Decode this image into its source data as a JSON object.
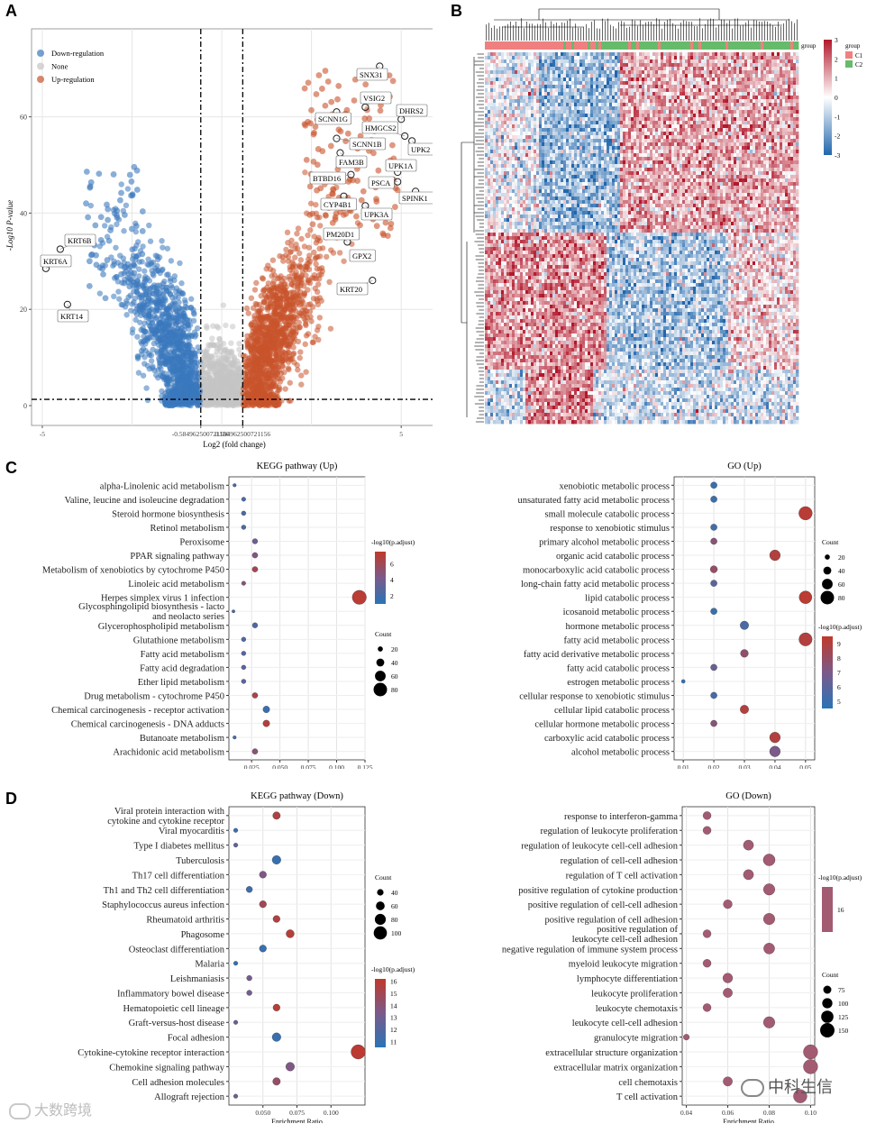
{
  "panels": {
    "a": "A",
    "b": "B",
    "c": "C",
    "d": "D"
  },
  "volcano": {
    "legend": [
      "Down-regulation",
      "None",
      "Up-regulation"
    ],
    "colors": {
      "down": "#3a78bd",
      "none": "#c4c4c4",
      "up": "#c9532c"
    },
    "xlabel": "Log2 (fold change)",
    "ylabel": "-Log10 P-value",
    "xticks": [
      "-5",
      "-0.584962500721156",
      "0.584962500721156",
      "5"
    ],
    "yticks": [
      "0",
      "20",
      "40",
      "60"
    ],
    "genes_up": [
      {
        "name": "SNX31",
        "x": 4.4,
        "y": 70.5
      },
      {
        "name": "VSIG2",
        "x": 4.0,
        "y": 62.0
      },
      {
        "name": "DHRS2",
        "x": 5.0,
        "y": 59.5
      },
      {
        "name": "SCNN1G",
        "x": 3.2,
        "y": 61.0
      },
      {
        "name": "HMGCS2",
        "x": 5.1,
        "y": 56.0
      },
      {
        "name": "SCNN1B",
        "x": 3.2,
        "y": 55.5
      },
      {
        "name": "UPK2",
        "x": 5.3,
        "y": 55.0
      },
      {
        "name": "FAM3B",
        "x": 3.3,
        "y": 52.5
      },
      {
        "name": "UPK1A",
        "x": 4.9,
        "y": 48.5
      },
      {
        "name": "BTBD16",
        "x": 3.6,
        "y": 48.0
      },
      {
        "name": "PSCA",
        "x": 4.9,
        "y": 46.5
      },
      {
        "name": "SPINK1",
        "x": 5.4,
        "y": 44.5
      },
      {
        "name": "CYP4B1",
        "x": 3.4,
        "y": 43.5
      },
      {
        "name": "UPK3A",
        "x": 4.0,
        "y": 41.5
      },
      {
        "name": "PM20D1",
        "x": 3.5,
        "y": 34.0
      },
      {
        "name": "GPX2",
        "x": 3.7,
        "y": 31.5
      },
      {
        "name": "KRT20",
        "x": 4.2,
        "y": 26.0
      }
    ],
    "genes_down": [
      {
        "name": "KRT6B",
        "x": -4.5,
        "y": 32.5
      },
      {
        "name": "KRT6A",
        "x": -4.9,
        "y": 28.5
      },
      {
        "name": "KRT14",
        "x": -4.3,
        "y": 21.0
      }
    ]
  },
  "heatmap": {
    "legend_title": "group",
    "scale_ticks": [
      "3",
      "2",
      "1",
      "0",
      "-1",
      "-2",
      "-3"
    ],
    "groups": [
      "C1",
      "C2"
    ],
    "group_colors": [
      "#f08080",
      "#66bb6a"
    ],
    "colors": {
      "high": "#b2182b",
      "mid": "#ffffff",
      "low": "#2166ac"
    }
  },
  "chart_data": [
    {
      "type": "scatter",
      "title": "KEGG pathway (Up)",
      "xlabel": "Enrichment Ratio",
      "xlim": [
        0.005,
        0.125
      ],
      "xticks": [
        "0.025",
        "0.050",
        "0.075",
        "0.100",
        "0.125"
      ],
      "legend_color_title": "-log10(p.adjust)",
      "color_ticks": [
        "6",
        "4",
        "2"
      ],
      "color_range": [
        1,
        7.5
      ],
      "legend_size_title": "Count",
      "size_ticks": [
        "20",
        "40",
        "60",
        "80"
      ],
      "terms": [
        "alpha-Linolenic acid metabolism",
        "Valine, leucine and isoleucine degradation",
        "Steroid hormone biosynthesis",
        "Retinol metabolism",
        "Peroxisome",
        "PPAR signaling pathway",
        "Metabolism of xenobiotics by cytochrome P450",
        "Linoleic acid metabolism",
        "Herpes simplex virus 1 infection",
        "Glycosphingolipid biosynthesis - lacto\nand neolacto series",
        "Glycerophospholipid metabolism",
        "Glutathione metabolism",
        "Fatty acid metabolism",
        "Fatty acid degradation",
        "Ether lipid metabolism",
        "Drug metabolism - cytochrome P450",
        "Chemical carcinogenesis - receptor activation",
        "Chemical carcinogenesis - DNA adducts",
        "Butanoate metabolism",
        "Arachidonic acid metabolism"
      ],
      "ratios": [
        0.01,
        0.018,
        0.018,
        0.018,
        0.028,
        0.028,
        0.028,
        0.018,
        0.12,
        0.009,
        0.028,
        0.018,
        0.018,
        0.018,
        0.018,
        0.028,
        0.038,
        0.038,
        0.01,
        0.028
      ],
      "logp": [
        2.2,
        2.2,
        2.4,
        2.6,
        3.8,
        4.6,
        6.2,
        4.8,
        7.2,
        2.0,
        2.5,
        2.5,
        2.8,
        2.8,
        3.0,
        6.5,
        1.5,
        7.0,
        2.2,
        4.9
      ],
      "counts": [
        8,
        14,
        16,
        16,
        22,
        24,
        24,
        14,
        85,
        6,
        22,
        16,
        16,
        16,
        16,
        24,
        32,
        32,
        8,
        24
      ]
    },
    {
      "type": "scatter",
      "title": "GO (Up)",
      "xlabel": "Enrichment Ratio",
      "xlim": [
        0.007,
        0.053
      ],
      "xticks": [
        "0.01",
        "0.02",
        "0.03",
        "0.04",
        "0.05"
      ],
      "legend_size_title": "Count",
      "size_ticks": [
        "20",
        "40",
        "60",
        "80"
      ],
      "legend_color_title": "-log10(p.adjust)",
      "color_ticks": [
        "9",
        "8",
        "7",
        "6",
        "5"
      ],
      "color_range": [
        4.5,
        9.5
      ],
      "terms": [
        "xenobiotic metabolic process",
        "unsaturated fatty acid metabolic process",
        "small molecule catabolic process",
        "response to xenobiotic stimulus",
        "primary alcohol metabolic process",
        "organic acid catabolic process",
        "monocarboxylic acid catabolic process",
        "long-chain fatty acid metabolic process",
        "lipid catabolic process",
        "icosanoid metabolic process",
        "hormone metabolic process",
        "fatty acid metabolic process",
        "fatty acid derivative metabolic process",
        "fatty acid catabolic process",
        "estrogen metabolic process",
        "cellular response to xenobiotic stimulus",
        "cellular lipid catabolic process",
        "cellular hormone metabolic process",
        "carboxylic acid catabolic process",
        "alcohol metabolic process"
      ],
      "ratios": [
        0.02,
        0.02,
        0.05,
        0.02,
        0.02,
        0.04,
        0.02,
        0.02,
        0.05,
        0.02,
        0.03,
        0.05,
        0.03,
        0.02,
        0.01,
        0.02,
        0.03,
        0.02,
        0.04,
        0.04
      ],
      "logp": [
        5.0,
        5.0,
        9.2,
        5.2,
        7.5,
        9.0,
        8.0,
        6.0,
        9.3,
        5.0,
        5.5,
        9.0,
        7.8,
        6.5,
        4.8,
        5.3,
        9.0,
        7.5,
        9.0,
        7.0
      ],
      "counts": [
        30,
        30,
        80,
        30,
        30,
        60,
        35,
        30,
        75,
        30,
        45,
        78,
        40,
        30,
        10,
        30,
        45,
        30,
        60,
        60
      ]
    },
    {
      "type": "scatter",
      "title": "KEGG pathway (Down)",
      "xlabel": "Enrichment Ratio",
      "xlim": [
        0.025,
        0.125
      ],
      "xticks": [
        "0.050",
        "0.075",
        "0.100"
      ],
      "legend_size_title": "Count",
      "size_ticks": [
        "40",
        "60",
        "80",
        "100"
      ],
      "legend_color_title": "-log10(p.adjust)",
      "color_ticks": [
        "16",
        "15",
        "14",
        "13",
        "12",
        "11"
      ],
      "color_range": [
        10.5,
        16.2
      ],
      "terms": [
        "Viral protein interaction with\ncytokine and cytokine receptor",
        "Viral myocarditis",
        "Type I diabetes mellitus",
        "Tuberculosis",
        "Th17 cell differentiation",
        "Th1 and Th2 cell differentiation",
        "Staphylococcus aureus infection",
        "Rheumatoid arthritis",
        "Phagosome",
        "Osteoclast differentiation",
        "Malaria",
        "Leishmaniasis",
        "Inflammatory bowel disease",
        "Hematopoietic cell lineage",
        "Graft-versus-host disease",
        "Focal adhesion",
        "Cytokine-cytokine receptor interaction",
        "Chemokine signaling pathway",
        "Cell adhesion molecules",
        "Allograft rejection"
      ],
      "ratios": [
        0.06,
        0.03,
        0.03,
        0.06,
        0.05,
        0.04,
        0.05,
        0.06,
        0.07,
        0.05,
        0.03,
        0.04,
        0.04,
        0.06,
        0.03,
        0.06,
        0.12,
        0.07,
        0.06,
        0.03
      ],
      "logp": [
        15.5,
        11.0,
        12.5,
        11.0,
        13.5,
        11.2,
        15.0,
        15.5,
        15.8,
        11.0,
        11.0,
        13.0,
        13.0,
        15.8,
        12.5,
        11.0,
        16.0,
        13.5,
        14.5,
        12.8
      ],
      "counts": [
        50,
        20,
        20,
        60,
        45,
        38,
        45,
        45,
        55,
        45,
        20,
        30,
        30,
        45,
        20,
        60,
        110,
        60,
        50,
        20
      ]
    },
    {
      "type": "scatter",
      "title": "GO (Down)",
      "xlabel": "Enrichment Ratio",
      "xlim": [
        0.038,
        0.102
      ],
      "xticks": [
        "0.04",
        "0.06",
        "0.08",
        "0.10"
      ],
      "legend_color_title": "-log10(p.adjust)",
      "color_ticks": [
        "16"
      ],
      "legend_size_title": "Count",
      "size_ticks": [
        "75",
        "100",
        "125",
        "150"
      ],
      "terms": [
        "response to interferon-gamma",
        "regulation of leukocyte proliferation",
        "regulation of leukocyte cell-cell adhesion",
        "regulation of cell-cell adhesion",
        "regulation of T cell activation",
        "positive regulation of cytokine production",
        "positive regulation of cell-cell adhesion",
        "positive regulation of cell adhesion",
        "positive regulation of\nleukocyte cell-cell adhesion",
        "negative regulation of immune system process",
        "myeloid leukocyte migration",
        "lymphocyte differentiation",
        "leukocyte proliferation",
        "leukocyte chemotaxis",
        "leukocyte cell-cell adhesion",
        "granulocyte migration",
        "extracellular structure organization",
        "extracellular matrix organization",
        "cell chemotaxis",
        "T cell activation"
      ],
      "ratios": [
        0.05,
        0.05,
        0.07,
        0.08,
        0.07,
        0.08,
        0.06,
        0.08,
        0.05,
        0.08,
        0.05,
        0.06,
        0.06,
        0.05,
        0.08,
        0.04,
        0.1,
        0.1,
        0.06,
        0.095
      ],
      "logp": [
        16,
        16,
        16,
        16,
        16,
        16,
        16,
        16,
        16,
        16,
        16,
        16,
        16,
        16,
        16,
        16,
        16,
        16,
        16,
        16
      ],
      "counts": [
        75,
        75,
        100,
        120,
        100,
        115,
        85,
        115,
        75,
        110,
        75,
        95,
        90,
        75,
        115,
        50,
        150,
        150,
        90,
        140
      ]
    }
  ],
  "watermarks": {
    "left": "大数跨境",
    "right": "中科生信"
  }
}
